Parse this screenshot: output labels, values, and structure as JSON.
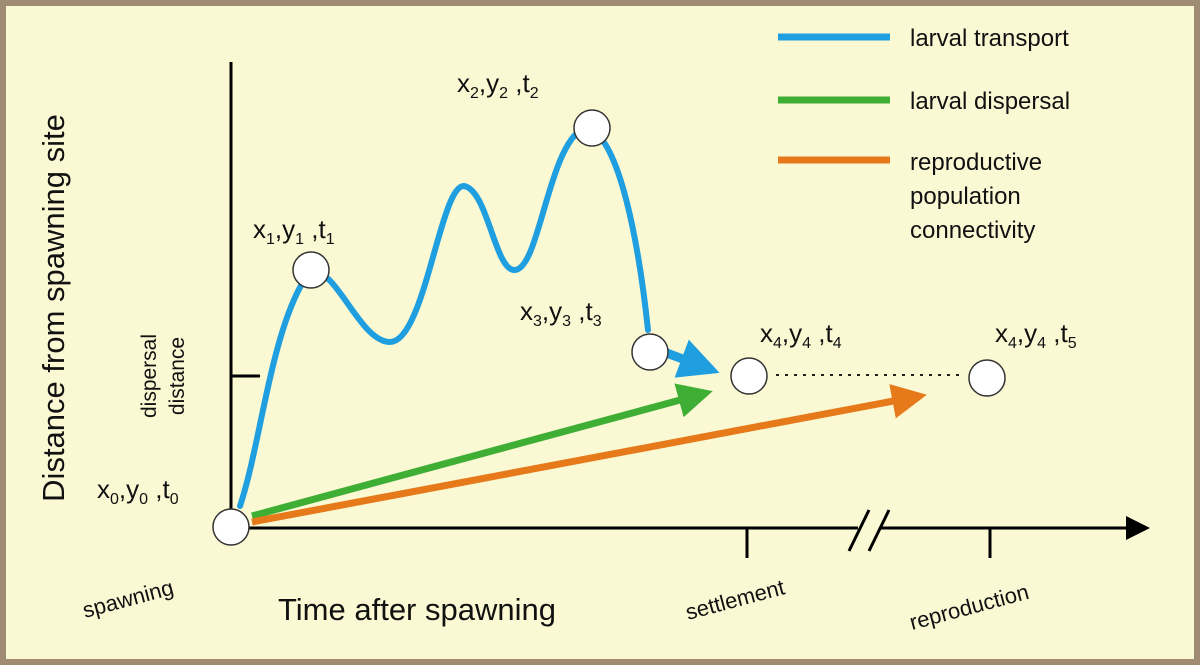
{
  "colors": {
    "frame": "#a08c72",
    "background": "#fbf8d4",
    "larval_transport": "#1f9fe0",
    "larval_dispersal": "#3fae35",
    "reproductive_connectivity": "#e67a1a",
    "axis": "#000000"
  },
  "legend": [
    {
      "label": "larval transport",
      "color_key": "larval_transport"
    },
    {
      "label": "larval dispersal",
      "color_key": "larval_dispersal"
    },
    {
      "label": "reproductive",
      "label2": "population",
      "label3": "connectivity",
      "color_key": "reproductive_connectivity"
    }
  ],
  "axes": {
    "y_label": "Distance from spawning site",
    "x_label": "Time after spawning",
    "dispersal_tick_label1": "dispersal",
    "dispersal_tick_label2": "distance",
    "x_ticks": [
      "spawning",
      "settlement",
      "reproduction"
    ]
  },
  "points": [
    {
      "x": "x",
      "xs": "0",
      "y": "y",
      "ys": "0",
      "t": "t",
      "ts": "0"
    },
    {
      "x": "x",
      "xs": "1",
      "y": "y",
      "ys": "1",
      "t": "t",
      "ts": "1"
    },
    {
      "x": "x",
      "xs": "2",
      "y": "y",
      "ys": "2",
      "t": "t",
      "ts": "2"
    },
    {
      "x": "x",
      "xs": "3",
      "y": "y",
      "ys": "3",
      "t": "t",
      "ts": "3"
    },
    {
      "x": "x",
      "xs": "4",
      "y": "y",
      "ys": "4",
      "t": "t",
      "ts": "4"
    },
    {
      "x": "x",
      "xs": "4",
      "y": "y",
      "ys": "4",
      "t": "t",
      "ts": "5"
    }
  ]
}
